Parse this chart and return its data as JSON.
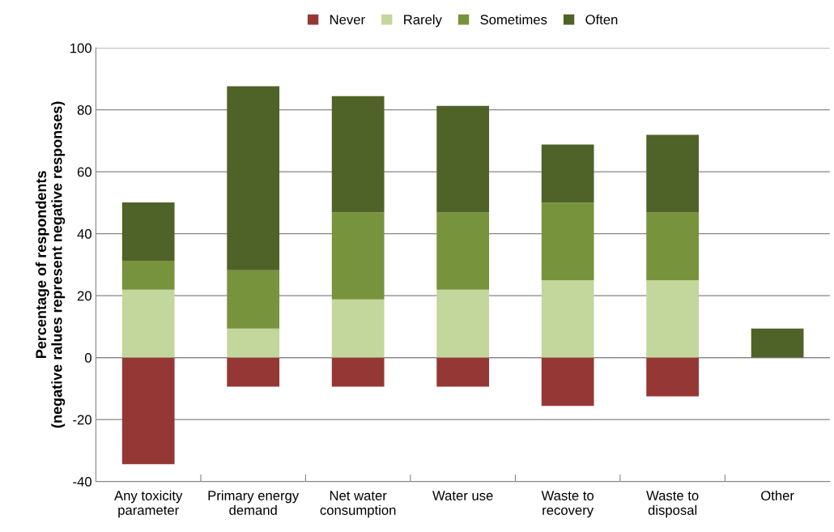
{
  "chart_data": {
    "type": "bar",
    "stacked": true,
    "ylabel": "Percentage of respondents\n(negative ralues represent negative responses)",
    "categories": [
      "Any toxicity\nparameter",
      "Primary energy\ndemand",
      "Net water\nconsumption",
      "Water use",
      "Waste to\nrecovery",
      "Waste to\ndisposal",
      "Other"
    ],
    "series": [
      {
        "name": "Never",
        "color": "#953735",
        "values": [
          -34.4,
          -9.4,
          -9.4,
          -9.4,
          -15.6,
          -12.5,
          null
        ]
      },
      {
        "name": "Rarely",
        "color": "#c3d69b",
        "values": [
          21.9,
          9.4,
          18.8,
          21.9,
          25.0,
          25.0,
          null
        ]
      },
      {
        "name": "Sometimes",
        "color": "#77933c",
        "values": [
          9.4,
          18.8,
          28.1,
          25.0,
          25.0,
          21.9,
          null
        ]
      },
      {
        "name": "Often",
        "color": "#4f6228",
        "values": [
          18.8,
          59.4,
          37.5,
          34.4,
          18.8,
          25.0,
          9.4
        ]
      }
    ],
    "ylim": [
      -40,
      100
    ],
    "yticks": [
      -40,
      -20,
      0,
      20,
      40,
      60,
      80,
      100
    ],
    "grid": "y",
    "legend": "top"
  }
}
